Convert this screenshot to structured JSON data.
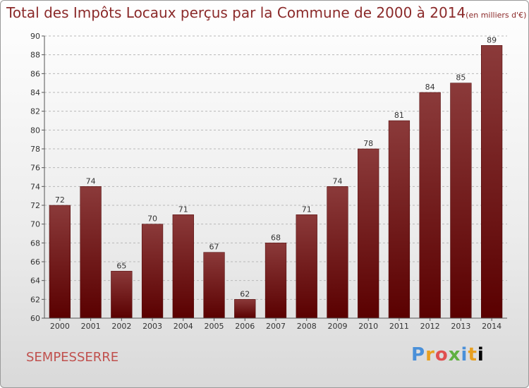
{
  "title": "Total des Impôts Locaux perçus par la Commune de 2000 à 2014",
  "unit": "(en milliers d'€)",
  "commune": "SEMPESSERRE",
  "logo": "Proxiti",
  "colors": {
    "bar_dark": "#5a0000",
    "bar_light": "#8b3a3a",
    "title": "#8b2a2a",
    "commune": "#c0504d"
  },
  "chart_data": {
    "type": "bar",
    "categories": [
      "2000",
      "2001",
      "2002",
      "2003",
      "2004",
      "2005",
      "2006",
      "2007",
      "2008",
      "2009",
      "2010",
      "2011",
      "2012",
      "2013",
      "2014"
    ],
    "values": [
      72,
      74,
      65,
      70,
      71,
      67,
      62,
      68,
      71,
      74,
      78,
      81,
      84,
      85,
      89
    ],
    "ylim": [
      60,
      90
    ],
    "yticks": [
      60,
      62,
      64,
      66,
      68,
      70,
      72,
      74,
      76,
      78,
      80,
      82,
      84,
      86,
      88,
      90
    ],
    "grid": true,
    "xlabel": "",
    "ylabel": ""
  }
}
